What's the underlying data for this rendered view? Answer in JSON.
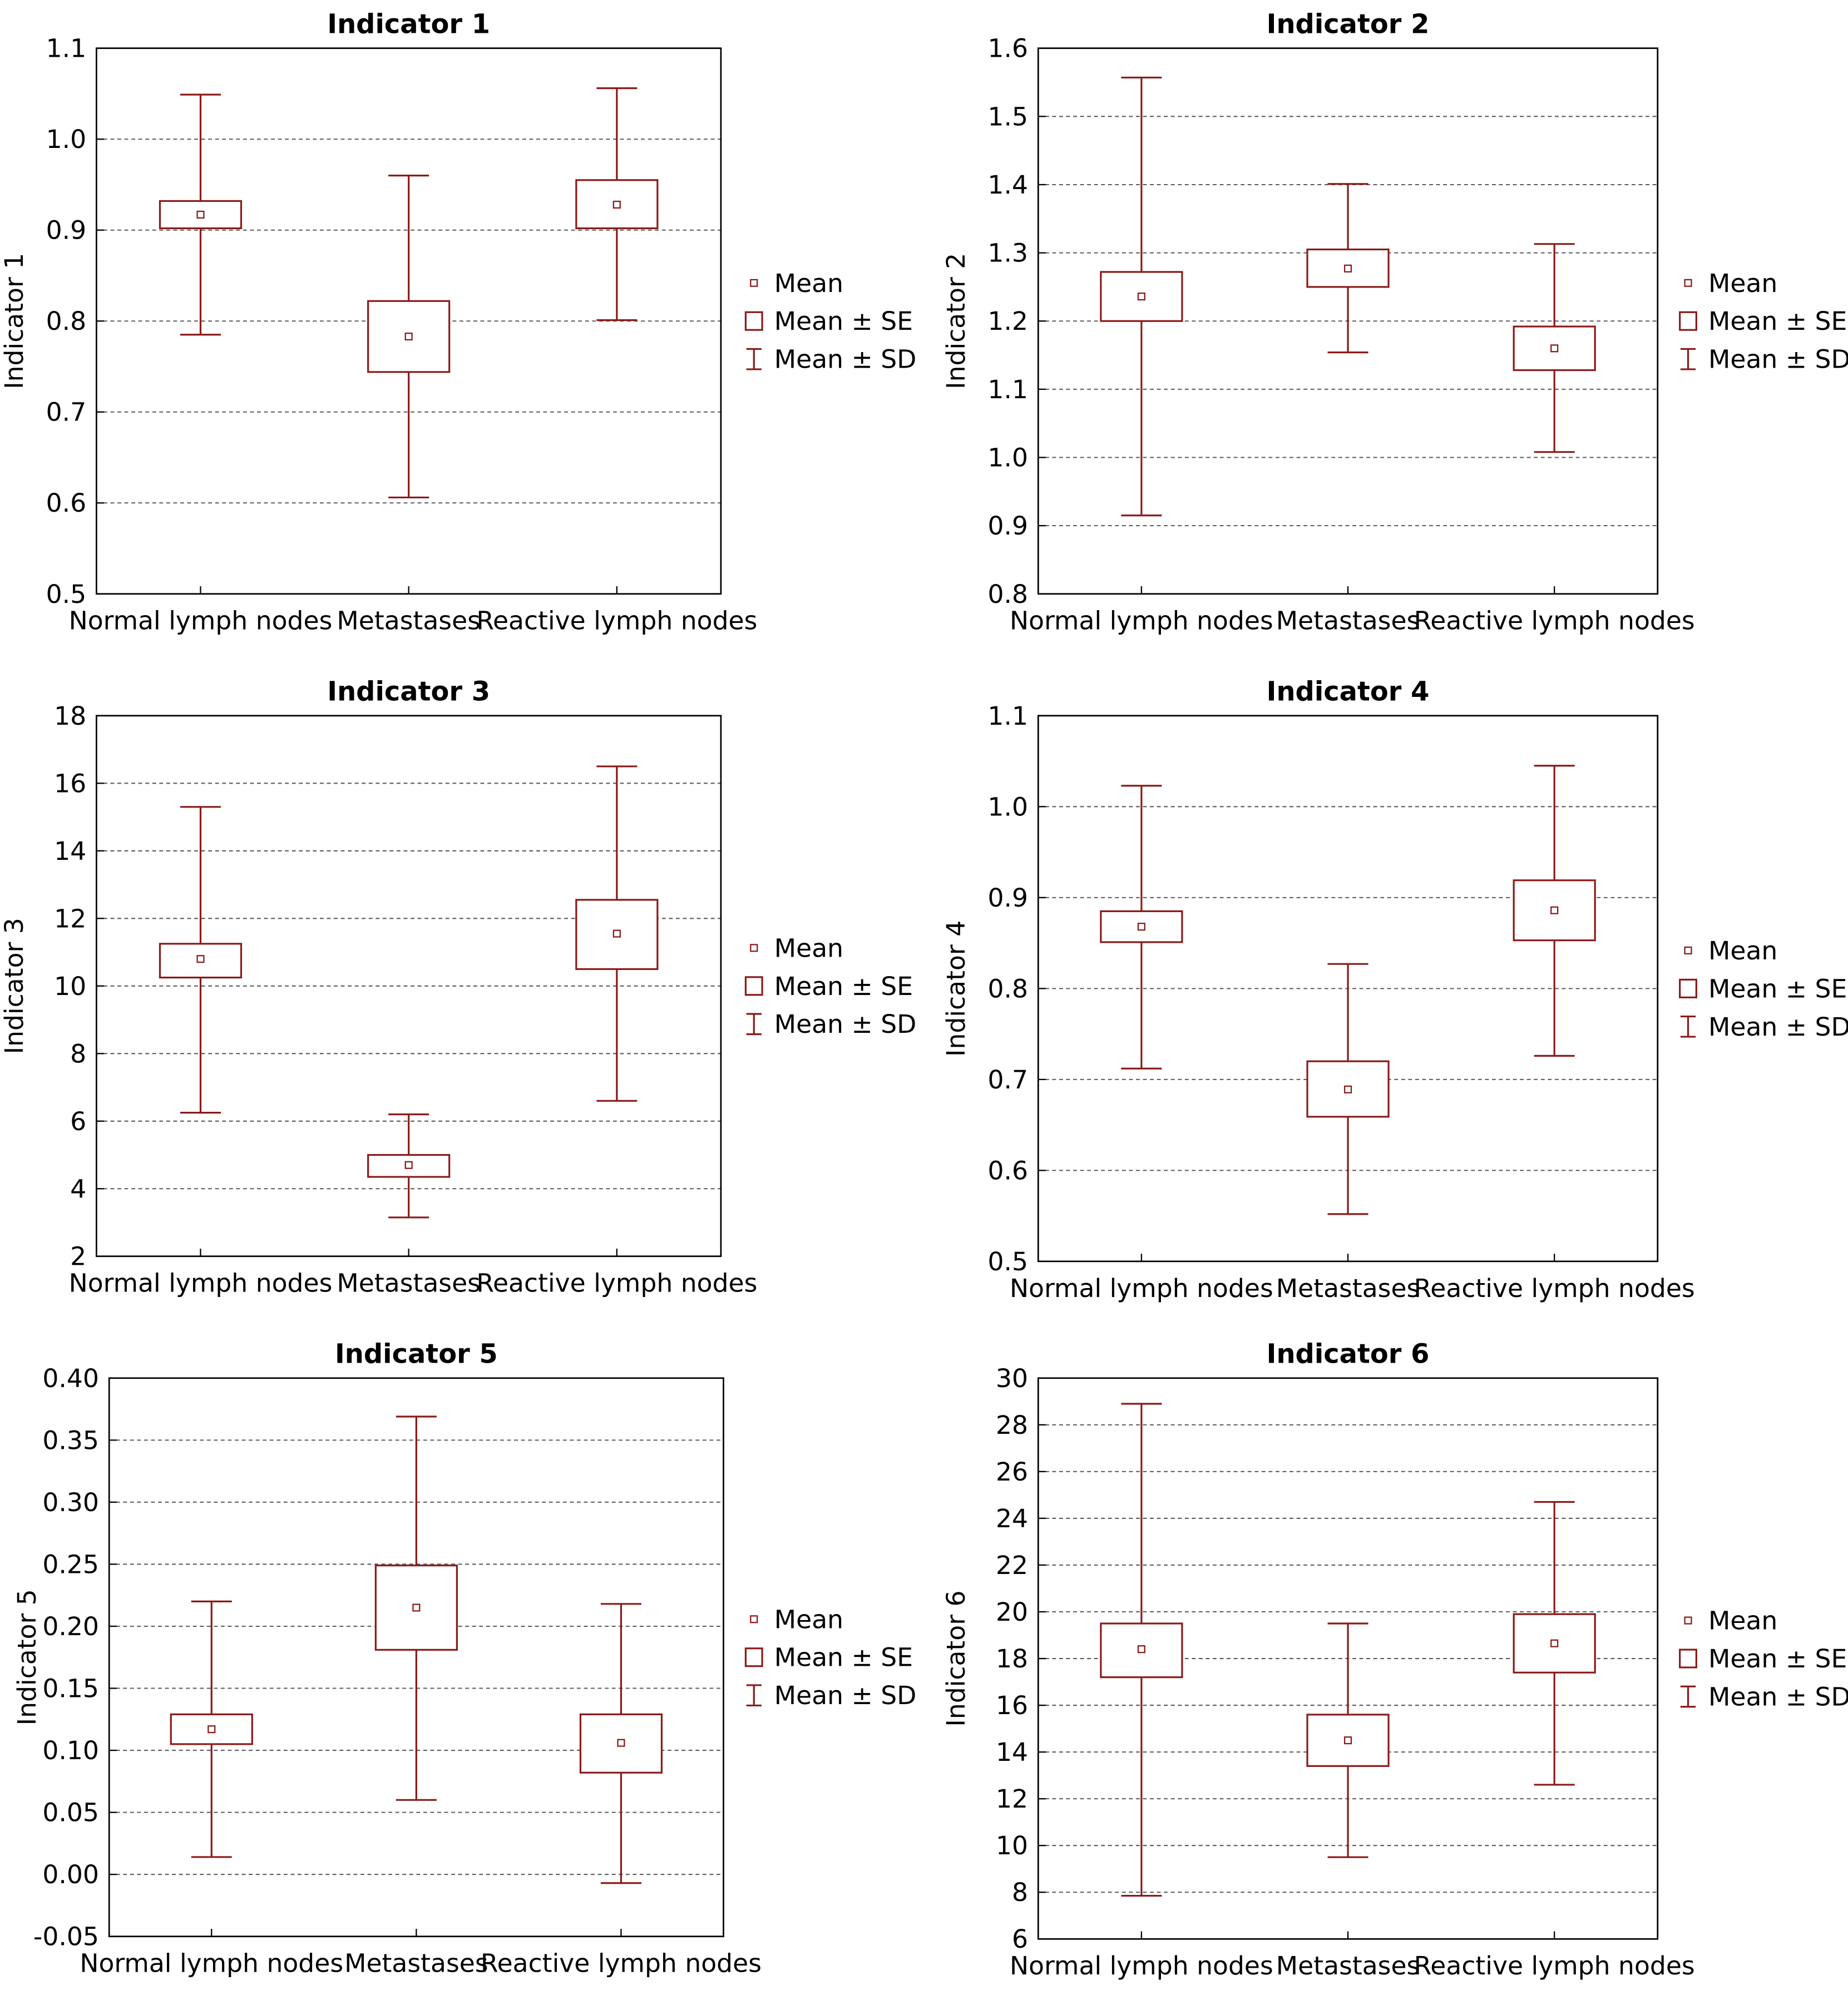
{
  "style": {
    "series_color": "#8b1a1a",
    "grid_color": "#5a5a5a",
    "axis_color": "#000000"
  },
  "legend": {
    "mean_label": "Mean",
    "se_label": "Mean ± SE",
    "sd_label": "Mean ± SD"
  },
  "chart_data": [
    {
      "type": "box",
      "title": "Indicator 1",
      "xlabel": "",
      "ylabel": "Indicator 1",
      "ylim": [
        0.5,
        1.1
      ],
      "yticks": [
        "0.5",
        "0.6",
        "0.7",
        "0.8",
        "0.9",
        "1.0",
        "1.1"
      ],
      "categories": [
        "Normal lymph nodes",
        "Metastases",
        "Reactive lymph nodes"
      ],
      "grid": "horizontal dashed",
      "legend_position": "right",
      "series": [
        {
          "category": "Normal lymph nodes",
          "mean": 0.917,
          "se_low": 0.902,
          "se_high": 0.932,
          "sd_low": 0.785,
          "sd_high": 1.049
        },
        {
          "category": "Metastases",
          "mean": 0.783,
          "se_low": 0.744,
          "se_high": 0.822,
          "sd_low": 0.606,
          "sd_high": 0.96
        },
        {
          "category": "Reactive lymph nodes",
          "mean": 0.928,
          "se_low": 0.902,
          "se_high": 0.955,
          "sd_low": 0.801,
          "sd_high": 1.056
        }
      ]
    },
    {
      "type": "box",
      "title": "Indicator 2",
      "xlabel": "",
      "ylabel": "Indicator 2",
      "ylim": [
        0.8,
        1.6
      ],
      "yticks": [
        "0.8",
        "0.9",
        "1.0",
        "1.1",
        "1.2",
        "1.3",
        "1.4",
        "1.5",
        "1.6"
      ],
      "categories": [
        "Normal lymph nodes",
        "Metastases",
        "Reactive lymph nodes"
      ],
      "grid": "horizontal dashed",
      "legend_position": "right",
      "series": [
        {
          "category": "Normal lymph nodes",
          "mean": 1.236,
          "se_low": 1.2,
          "se_high": 1.272,
          "sd_low": 0.915,
          "sd_high": 1.557
        },
        {
          "category": "Metastases",
          "mean": 1.277,
          "se_low": 1.25,
          "se_high": 1.305,
          "sd_low": 1.154,
          "sd_high": 1.401
        },
        {
          "category": "Reactive lymph nodes",
          "mean": 1.16,
          "se_low": 1.128,
          "se_high": 1.192,
          "sd_low": 1.008,
          "sd_high": 1.313
        }
      ]
    },
    {
      "type": "box",
      "title": "Indicator 3",
      "xlabel": "",
      "ylabel": "Indicator 3",
      "ylim": [
        2,
        18
      ],
      "yticks": [
        "2",
        "4",
        "6",
        "8",
        "10",
        "12",
        "14",
        "16",
        "18"
      ],
      "categories": [
        "Normal lymph nodes",
        "Metastases",
        "Reactive lymph nodes"
      ],
      "grid": "horizontal dashed",
      "legend_position": "right",
      "series": [
        {
          "category": "Normal lymph nodes",
          "mean": 10.8,
          "se_low": 10.25,
          "se_high": 11.25,
          "sd_low": 6.25,
          "sd_high": 15.3
        },
        {
          "category": "Metastases",
          "mean": 4.7,
          "se_low": 4.35,
          "se_high": 5.0,
          "sd_low": 3.15,
          "sd_high": 6.2
        },
        {
          "category": "Reactive lymph nodes",
          "mean": 11.55,
          "se_low": 10.5,
          "se_high": 12.55,
          "sd_low": 6.6,
          "sd_high": 16.5
        }
      ]
    },
    {
      "type": "box",
      "title": "Indicator 4",
      "xlabel": "",
      "ylabel": "Indicator 4",
      "ylim": [
        0.5,
        1.1
      ],
      "yticks": [
        "0.5",
        "0.6",
        "0.7",
        "0.8",
        "0.9",
        "1.0",
        "1.1"
      ],
      "categories": [
        "Normal lymph nodes",
        "Metastases",
        "Reactive lymph nodes"
      ],
      "grid": "horizontal dashed",
      "legend_position": "right",
      "series": [
        {
          "category": "Normal lymph nodes",
          "mean": 0.868,
          "se_low": 0.851,
          "se_high": 0.885,
          "sd_low": 0.712,
          "sd_high": 1.023
        },
        {
          "category": "Metastases",
          "mean": 0.689,
          "se_low": 0.659,
          "se_high": 0.72,
          "sd_low": 0.552,
          "sd_high": 0.827
        },
        {
          "category": "Reactive lymph nodes",
          "mean": 0.886,
          "se_low": 0.853,
          "se_high": 0.919,
          "sd_low": 0.726,
          "sd_high": 1.045
        }
      ]
    },
    {
      "type": "box",
      "title": "Indicator 5",
      "xlabel": "",
      "ylabel": "Indicator 5",
      "ylim": [
        -0.05,
        0.4
      ],
      "yticks": [
        "-0.05",
        "0.00",
        "0.05",
        "0.10",
        "0.15",
        "0.20",
        "0.25",
        "0.30",
        "0.35",
        "0.40"
      ],
      "categories": [
        "Normal lymph nodes",
        "Metastases",
        "Reactive lymph nodes"
      ],
      "grid": "horizontal dashed",
      "legend_position": "right",
      "series": [
        {
          "category": "Normal lymph nodes",
          "mean": 0.117,
          "se_low": 0.105,
          "se_high": 0.129,
          "sd_low": 0.014,
          "sd_high": 0.22
        },
        {
          "category": "Metastases",
          "mean": 0.215,
          "se_low": 0.181,
          "se_high": 0.249,
          "sd_low": 0.06,
          "sd_high": 0.369
        },
        {
          "category": "Reactive lymph nodes",
          "mean": 0.106,
          "se_low": 0.082,
          "se_high": 0.129,
          "sd_low": -0.007,
          "sd_high": 0.218
        }
      ]
    },
    {
      "type": "box",
      "title": "Indicator 6",
      "xlabel": "",
      "ylabel": "Indicator 6",
      "ylim": [
        6,
        30
      ],
      "yticks": [
        "6",
        "8",
        "10",
        "12",
        "14",
        "16",
        "18",
        "20",
        "22",
        "24",
        "26",
        "28",
        "30"
      ],
      "categories": [
        "Normal lymph nodes",
        "Metastases",
        "Reactive lymph nodes"
      ],
      "grid": "horizontal dashed",
      "legend_position": "right",
      "series": [
        {
          "category": "Normal lymph nodes",
          "mean": 18.4,
          "se_low": 17.2,
          "se_high": 19.5,
          "sd_low": 7.85,
          "sd_high": 28.9
        },
        {
          "category": "Metastases",
          "mean": 14.5,
          "se_low": 13.4,
          "se_high": 15.6,
          "sd_low": 9.5,
          "sd_high": 19.5
        },
        {
          "category": "Reactive lymph nodes",
          "mean": 18.65,
          "se_low": 17.4,
          "se_high": 19.9,
          "sd_low": 12.6,
          "sd_high": 24.7
        }
      ]
    }
  ]
}
